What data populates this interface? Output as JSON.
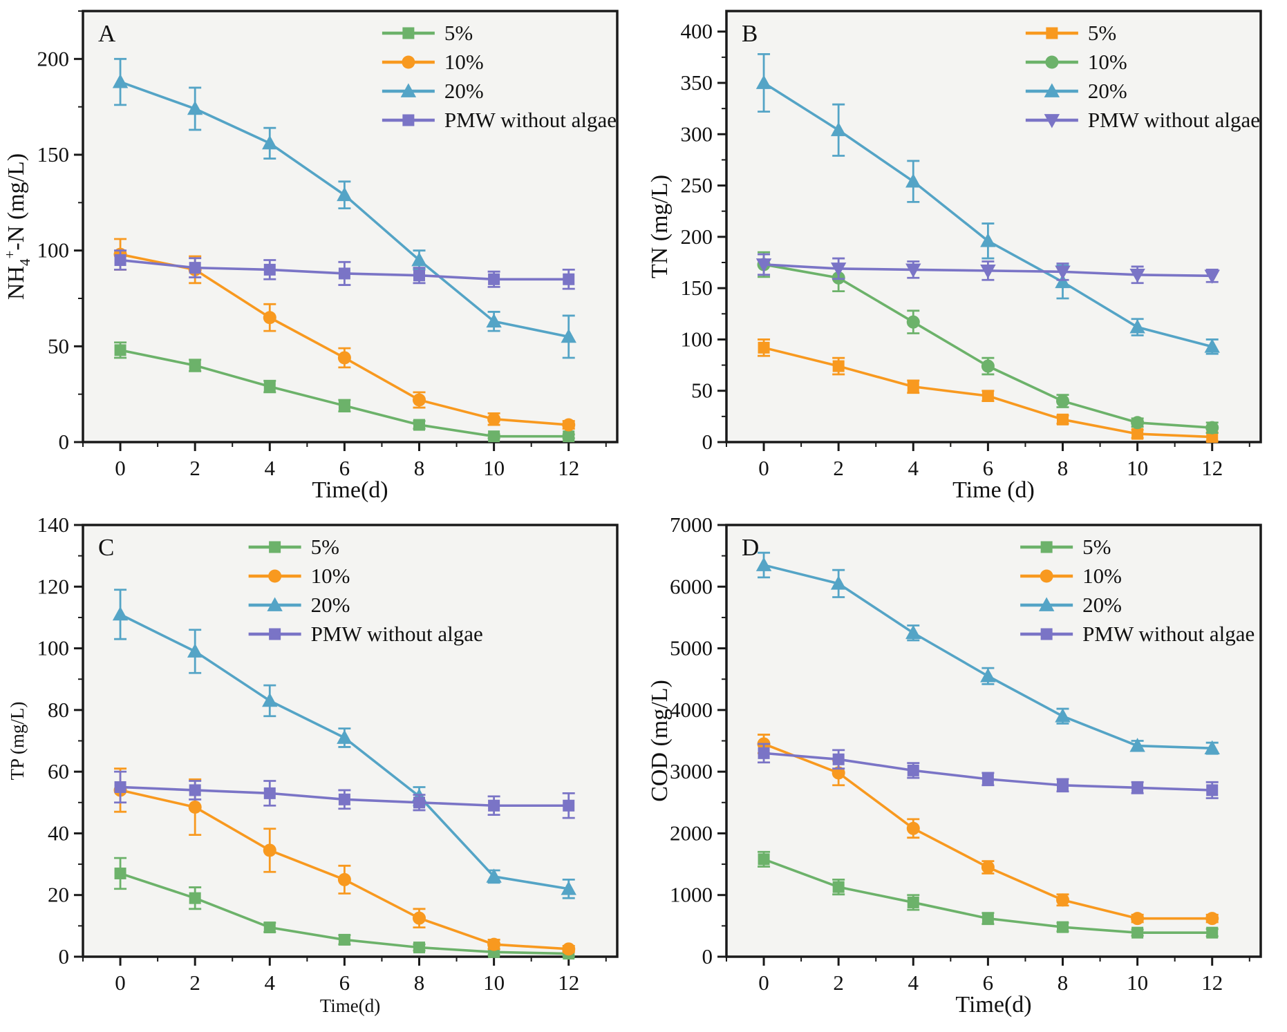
{
  "figure": {
    "description": "Four-panel line chart figure with error bars comparing pollutant removal over time",
    "background_color": "#ffffff",
    "plot_background_color": "#f4f4f2",
    "axis_color": "#1a1a1a"
  },
  "chart_data": [
    {
      "type": "line",
      "panel_label": "A",
      "xlabel": "Time(d)",
      "ylabel": "NH4+-N (mg/L)",
      "ylabel_parts": [
        {
          "t": "NH"
        },
        {
          "t": "4",
          "script": "sub"
        },
        {
          "t": "+",
          "script": "sup"
        },
        {
          "t": "-N (mg/L)"
        }
      ],
      "x": [
        0,
        2,
        4,
        6,
        8,
        10,
        12
      ],
      "xlim": [
        -1,
        13.3
      ],
      "ylim": [
        0,
        225
      ],
      "yticks": [
        0,
        50,
        100,
        150,
        200
      ],
      "y_minor_step": 25,
      "label_size": 34,
      "legend_x_frac": 0.56,
      "legend_position": "top-right",
      "grid": false,
      "series": [
        {
          "name": "5%",
          "color": "#6cb26a",
          "marker": "square",
          "values": [
            48,
            40,
            29,
            19,
            9,
            3,
            3
          ],
          "errors": [
            4,
            3,
            3,
            3,
            2,
            1,
            1
          ]
        },
        {
          "name": "10%",
          "color": "#f8991f",
          "marker": "circle",
          "values": [
            98,
            90,
            65,
            44,
            22,
            12,
            9
          ],
          "errors": [
            8,
            7,
            7,
            5,
            4,
            3,
            2
          ]
        },
        {
          "name": "20%",
          "color": "#54a4c6",
          "marker": "triangle-up",
          "values": [
            188,
            174,
            156,
            129,
            95,
            63,
            55
          ],
          "errors": [
            12,
            11,
            8,
            7,
            5,
            5,
            11
          ]
        },
        {
          "name": "PMW without algae",
          "color": "#7a74c6",
          "marker": "square",
          "values": [
            95,
            91,
            90,
            88,
            87,
            85,
            85
          ],
          "errors": [
            5,
            5,
            5,
            6,
            4,
            4,
            5
          ]
        }
      ]
    },
    {
      "type": "line",
      "panel_label": "B",
      "xlabel": "Time (d)",
      "ylabel": "TN (mg/L)",
      "x": [
        0,
        2,
        4,
        6,
        8,
        10,
        12
      ],
      "xlim": [
        -1,
        13.3
      ],
      "ylim": [
        0,
        420
      ],
      "yticks": [
        0,
        50,
        100,
        150,
        200,
        250,
        300,
        350,
        400
      ],
      "y_minor_step": 25,
      "label_size": 34,
      "legend_x_frac": 0.56,
      "legend_position": "top-right",
      "grid": false,
      "series": [
        {
          "name": "5%",
          "color": "#f8991f",
          "marker": "square",
          "values": [
            92,
            74,
            54,
            45,
            22,
            8,
            5
          ],
          "errors": [
            8,
            8,
            6,
            5,
            4,
            4,
            4
          ]
        },
        {
          "name": "10%",
          "color": "#6cb26a",
          "marker": "circle",
          "values": [
            173,
            160,
            117,
            74,
            40,
            19,
            14
          ],
          "errors": [
            12,
            13,
            11,
            8,
            6,
            4,
            5
          ]
        },
        {
          "name": "20%",
          "color": "#54a4c6",
          "marker": "triangle-up",
          "values": [
            350,
            304,
            254,
            196,
            156,
            112,
            93
          ],
          "errors": [
            28,
            25,
            20,
            17,
            16,
            8,
            7
          ]
        },
        {
          "name": "PMW without algae",
          "color": "#7a74c6",
          "marker": "triangle-down",
          "values": [
            173,
            169,
            168,
            167,
            166,
            163,
            162
          ],
          "errors": [
            10,
            10,
            8,
            9,
            8,
            8,
            6
          ]
        }
      ]
    },
    {
      "type": "line",
      "panel_label": "C",
      "xlabel": "Time(d)",
      "ylabel": "TP (mg/L)",
      "x": [
        0,
        2,
        4,
        6,
        8,
        10,
        12
      ],
      "xlim": [
        -1,
        13.3
      ],
      "ylim": [
        0,
        140
      ],
      "yticks": [
        0,
        20,
        40,
        60,
        80,
        100,
        120,
        140
      ],
      "y_minor_step": 10,
      "label_size": 27,
      "legend_x_frac": 0.31,
      "legend_position": "top-right",
      "grid": false,
      "series": [
        {
          "name": "5%",
          "color": "#6cb26a",
          "marker": "square",
          "values": [
            27,
            19,
            9.5,
            5.5,
            3,
            1.5,
            1
          ],
          "errors": [
            5,
            3.5,
            1.5,
            1.5,
            1,
            1,
            0.8
          ]
        },
        {
          "name": "10%",
          "color": "#f8991f",
          "marker": "circle",
          "values": [
            54,
            48.5,
            34.5,
            25,
            12.5,
            4,
            2.5
          ],
          "errors": [
            7,
            9,
            7,
            4.5,
            3,
            1.5,
            1
          ]
        },
        {
          "name": "20%",
          "color": "#54a4c6",
          "marker": "triangle-up",
          "values": [
            111,
            99,
            83,
            71,
            52,
            26,
            22
          ],
          "errors": [
            8,
            7,
            5,
            3,
            3,
            2,
            3
          ]
        },
        {
          "name": "PMW without algae",
          "color": "#7a74c6",
          "marker": "square",
          "values": [
            55,
            54,
            53,
            51,
            50,
            49,
            49
          ],
          "errors": [
            5,
            3,
            4,
            3,
            2.5,
            3,
            4
          ]
        }
      ]
    },
    {
      "type": "line",
      "panel_label": "D",
      "xlabel": "Time(d)",
      "ylabel": "COD (mg/L)",
      "x": [
        0,
        2,
        4,
        6,
        8,
        10,
        12
      ],
      "xlim": [
        -1,
        13.3
      ],
      "ylim": [
        0,
        7000
      ],
      "yticks": [
        0,
        1000,
        2000,
        3000,
        4000,
        5000,
        6000,
        7000
      ],
      "y_minor_step": 500,
      "label_size": 34,
      "legend_x_frac": 0.55,
      "legend_position": "top-right",
      "grid": false,
      "series": [
        {
          "name": "5%",
          "color": "#6cb26a",
          "marker": "square",
          "values": [
            1580,
            1130,
            880,
            620,
            480,
            390,
            390
          ],
          "errors": [
            120,
            120,
            120,
            90,
            70,
            50,
            60
          ]
        },
        {
          "name": "10%",
          "color": "#f8991f",
          "marker": "circle",
          "values": [
            3450,
            2980,
            2080,
            1450,
            920,
            620,
            620
          ],
          "errors": [
            150,
            200,
            150,
            100,
            90,
            60,
            60
          ]
        },
        {
          "name": "20%",
          "color": "#54a4c6",
          "marker": "triangle-up",
          "values": [
            6350,
            6050,
            5250,
            4550,
            3900,
            3420,
            3380
          ],
          "errors": [
            200,
            220,
            120,
            130,
            120,
            80,
            90
          ]
        },
        {
          "name": "PMW without algae",
          "color": "#7a74c6",
          "marker": "square",
          "values": [
            3300,
            3200,
            3020,
            2880,
            2780,
            2740,
            2700
          ],
          "errors": [
            150,
            150,
            120,
            100,
            100,
            90,
            130
          ]
        }
      ]
    }
  ]
}
